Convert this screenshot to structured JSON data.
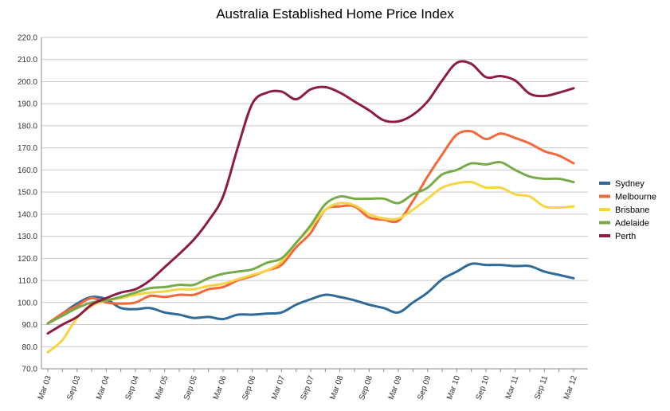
{
  "chart_data": {
    "type": "line",
    "title": "Australia Established Home Price Index",
    "xlabel": "",
    "ylabel": "",
    "ylim": [
      70,
      220
    ],
    "ytick_step": 10,
    "ytick_labels": [
      "70.0",
      "80.0",
      "90.0",
      "100.0",
      "110.0",
      "120.0",
      "130.0",
      "140.0",
      "150.0",
      "160.0",
      "170.0",
      "180.0",
      "190.0",
      "200.0",
      "210.0",
      "220.0"
    ],
    "x": [
      "Mar 03",
      "Jun 03",
      "Sep 03",
      "Dec 03",
      "Mar 04",
      "Jun 04",
      "Sep 04",
      "Dec 04",
      "Mar 05",
      "Jun 05",
      "Sep 05",
      "Dec 05",
      "Mar 06",
      "Jun 06",
      "Sep 06",
      "Dec 06",
      "Mar 07",
      "Jun 07",
      "Sep 07",
      "Dec 07",
      "Mar 08",
      "Jun 08",
      "Sep 08",
      "Dec 08",
      "Mar 09",
      "Jun 09",
      "Sep 09",
      "Dec 09",
      "Mar 10",
      "Jun 10",
      "Sep 10",
      "Dec 10",
      "Mar 11",
      "Jun 11",
      "Sep 11",
      "Dec 11",
      "Mar 12"
    ],
    "x_tick_labels": [
      "Mar 03",
      "Sep 03",
      "Mar 04",
      "Sep 04",
      "Mar 05",
      "Sep 05",
      "Mar 06",
      "Sep 06",
      "Mar 07",
      "Sep 07",
      "Mar 08",
      "Sep 08",
      "Mar 09",
      "Sep 09",
      "Mar 10",
      "Sep 10",
      "Mar 11",
      "Sep 11",
      "Mar 12"
    ],
    "grid": true,
    "legend_position": "right",
    "series": [
      {
        "name": "Sydney",
        "color": "#2e6b99",
        "values": [
          90.5,
          95,
          99.5,
          102.5,
          101.5,
          97.5,
          97,
          97.5,
          95.5,
          94.5,
          93,
          93.5,
          92.5,
          94.5,
          94.5,
          95,
          95.5,
          99,
          101.5,
          103.5,
          102.5,
          101,
          99,
          97.5,
          95.5,
          100,
          104.5,
          110.5,
          114,
          117.5,
          117,
          117,
          116.5,
          116.5,
          114,
          112.5,
          111
        ]
      },
      {
        "name": "Melbourne",
        "color": "#f2683a",
        "values": [
          90.5,
          95,
          98.5,
          102,
          100,
          99.5,
          100,
          103,
          102.5,
          103.5,
          103.5,
          106,
          107,
          110,
          112,
          114.5,
          117,
          125,
          131.5,
          142,
          143.5,
          143.5,
          138.5,
          137.5,
          137,
          146,
          157,
          167,
          176,
          177.5,
          174,
          176.5,
          174.5,
          172,
          168.5,
          166.5,
          163
        ]
      },
      {
        "name": "Brisbane",
        "color": "#f7d442",
        "values": [
          77.5,
          83,
          93,
          98.5,
          101,
          102,
          103.5,
          104.5,
          105,
          106,
          106,
          107.5,
          108.5,
          110.5,
          112.5,
          114.5,
          118.5,
          127,
          134,
          142,
          145,
          144,
          140,
          138,
          138,
          142,
          147,
          152,
          154,
          154.5,
          152,
          152,
          149,
          148,
          143.5,
          143,
          143.5
        ]
      },
      {
        "name": "Adelaide",
        "color": "#76ab48",
        "values": [
          90.5,
          94,
          97.5,
          100,
          101,
          102.5,
          104.5,
          106.5,
          107,
          108,
          108,
          111,
          113,
          114,
          115,
          118,
          120,
          127,
          135,
          144.5,
          148,
          147,
          147,
          147,
          145,
          149,
          152,
          158,
          160,
          163,
          162.5,
          163.5,
          160,
          157,
          156,
          156,
          154.5
        ]
      },
      {
        "name": "Perth",
        "color": "#8c1c40",
        "values": [
          86,
          90,
          93.5,
          99,
          102,
          104.5,
          106,
          110,
          116,
          122,
          128.5,
          137,
          148,
          170,
          190,
          195,
          195.5,
          192,
          196.5,
          197.5,
          195,
          191,
          187,
          182.5,
          182,
          185,
          191,
          200.5,
          208.5,
          208,
          202,
          202.5,
          200.5,
          194.5,
          193.5,
          195,
          197
        ]
      }
    ]
  }
}
